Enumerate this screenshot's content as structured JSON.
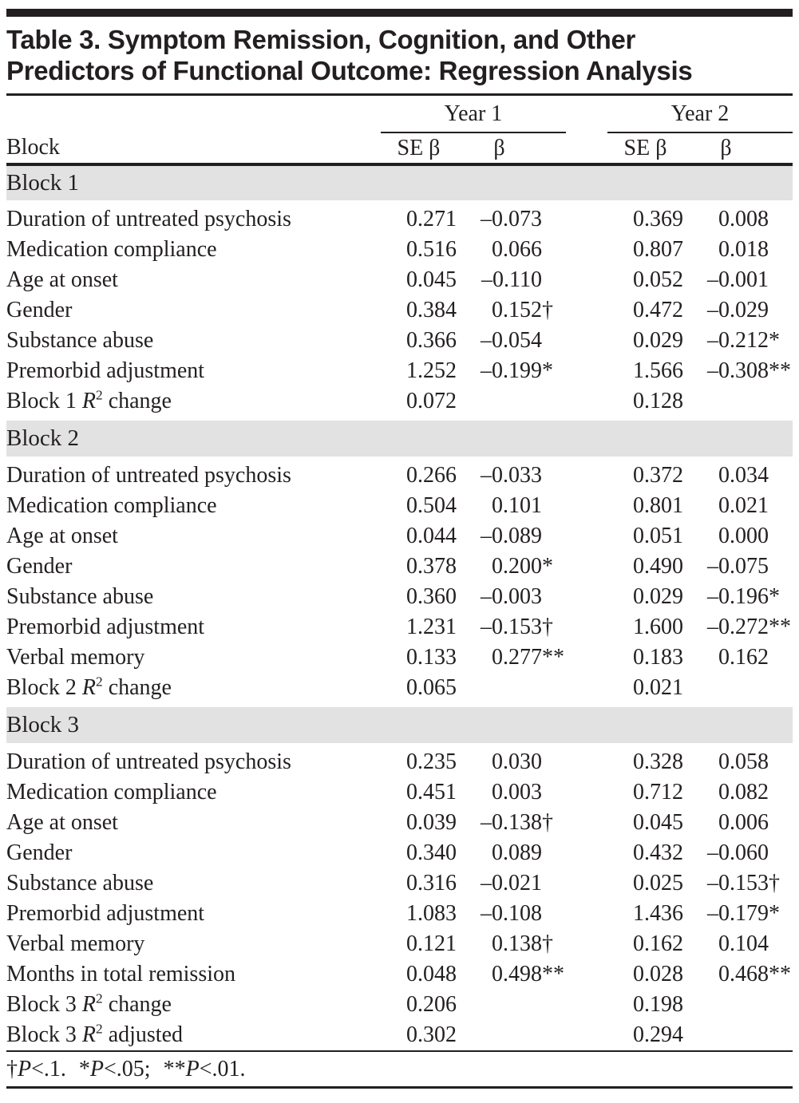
{
  "title": {
    "line1": "Table 3. Symptom Remission, Cognition, and Other",
    "line2": "Predictors of Functional Outcome: Regression Analysis"
  },
  "table": {
    "corner_label": "Block",
    "year_groups": [
      "Year 1",
      "Year 2"
    ],
    "subcolumns": {
      "se_beta": "SE β",
      "beta": "β"
    },
    "sections": [
      {
        "header": "Block 1",
        "rows": [
          {
            "label": "Duration of untreated psychosis",
            "cells": [
              [
                "0.271",
                ""
              ],
              [
                "–0.073",
                ""
              ],
              [
                "0.369",
                ""
              ],
              [
                "0.008",
                ""
              ]
            ]
          },
          {
            "label": "Medication compliance",
            "cells": [
              [
                "0.516",
                ""
              ],
              [
                "0.066",
                ""
              ],
              [
                "0.807",
                ""
              ],
              [
                "0.018",
                ""
              ]
            ]
          },
          {
            "label": "Age at onset",
            "cells": [
              [
                "0.045",
                ""
              ],
              [
                "–0.110",
                ""
              ],
              [
                "0.052",
                ""
              ],
              [
                "–0.001",
                ""
              ]
            ]
          },
          {
            "label": "Gender",
            "cells": [
              [
                "0.384",
                ""
              ],
              [
                "0.152",
                "†"
              ],
              [
                "0.472",
                ""
              ],
              [
                "–0.029",
                ""
              ]
            ]
          },
          {
            "label": "Substance abuse",
            "cells": [
              [
                "0.366",
                ""
              ],
              [
                "–0.054",
                ""
              ],
              [
                "0.029",
                ""
              ],
              [
                "–0.212",
                "*"
              ]
            ]
          },
          {
            "label": "Premorbid adjustment",
            "cells": [
              [
                "1.252",
                ""
              ],
              [
                "–0.199",
                "*"
              ],
              [
                "1.566",
                ""
              ],
              [
                "–0.308",
                "**"
              ]
            ]
          },
          {
            "label": "Block 1 R^2 change",
            "cells": [
              [
                "0.072",
                ""
              ],
              [
                "",
                ""
              ],
              [
                "0.128",
                ""
              ],
              [
                "",
                ""
              ]
            ]
          }
        ]
      },
      {
        "header": "Block 2",
        "rows": [
          {
            "label": "Duration of untreated psychosis",
            "cells": [
              [
                "0.266",
                ""
              ],
              [
                "–0.033",
                ""
              ],
              [
                "0.372",
                ""
              ],
              [
                "0.034",
                ""
              ]
            ]
          },
          {
            "label": "Medication compliance",
            "cells": [
              [
                "0.504",
                ""
              ],
              [
                "0.101",
                ""
              ],
              [
                "0.801",
                ""
              ],
              [
                "0.021",
                ""
              ]
            ]
          },
          {
            "label": "Age at onset",
            "cells": [
              [
                "0.044",
                ""
              ],
              [
                "–0.089",
                ""
              ],
              [
                "0.051",
                ""
              ],
              [
                "0.000",
                ""
              ]
            ]
          },
          {
            "label": "Gender",
            "cells": [
              [
                "0.378",
                ""
              ],
              [
                "0.200",
                "*"
              ],
              [
                "0.490",
                ""
              ],
              [
                "–0.075",
                ""
              ]
            ]
          },
          {
            "label": "Substance abuse",
            "cells": [
              [
                "0.360",
                ""
              ],
              [
                "–0.003",
                ""
              ],
              [
                "0.029",
                ""
              ],
              [
                "–0.196",
                "*"
              ]
            ]
          },
          {
            "label": "Premorbid adjustment",
            "cells": [
              [
                "1.231",
                ""
              ],
              [
                "–0.153",
                "†"
              ],
              [
                "1.600",
                ""
              ],
              [
                "–0.272",
                "**"
              ]
            ]
          },
          {
            "label": "Verbal memory",
            "cells": [
              [
                "0.133",
                ""
              ],
              [
                "0.277",
                "**"
              ],
              [
                "0.183",
                ""
              ],
              [
                "0.162",
                ""
              ]
            ]
          },
          {
            "label": "Block 2 R^2 change",
            "cells": [
              [
                "0.065",
                ""
              ],
              [
                "",
                ""
              ],
              [
                "0.021",
                ""
              ],
              [
                "",
                ""
              ]
            ]
          }
        ]
      },
      {
        "header": "Block 3",
        "rows": [
          {
            "label": "Duration of untreated psychosis",
            "cells": [
              [
                "0.235",
                ""
              ],
              [
                "0.030",
                ""
              ],
              [
                "0.328",
                ""
              ],
              [
                "0.058",
                ""
              ]
            ]
          },
          {
            "label": "Medication compliance",
            "cells": [
              [
                "0.451",
                ""
              ],
              [
                "0.003",
                ""
              ],
              [
                "0.712",
                ""
              ],
              [
                "0.082",
                ""
              ]
            ]
          },
          {
            "label": "Age at onset",
            "cells": [
              [
                "0.039",
                ""
              ],
              [
                "–0.138",
                "†"
              ],
              [
                "0.045",
                ""
              ],
              [
                "0.006",
                ""
              ]
            ]
          },
          {
            "label": "Gender",
            "cells": [
              [
                "0.340",
                ""
              ],
              [
                "0.089",
                ""
              ],
              [
                "0.432",
                ""
              ],
              [
                "–0.060",
                ""
              ]
            ]
          },
          {
            "label": "Substance abuse",
            "cells": [
              [
                "0.316",
                ""
              ],
              [
                "–0.021",
                ""
              ],
              [
                "0.025",
                ""
              ],
              [
                "–0.153",
                "†"
              ]
            ]
          },
          {
            "label": "Premorbid adjustment",
            "cells": [
              [
                "1.083",
                ""
              ],
              [
                "–0.108",
                ""
              ],
              [
                "1.436",
                ""
              ],
              [
                "–0.179",
                "*"
              ]
            ]
          },
          {
            "label": "Verbal memory",
            "cells": [
              [
                "0.121",
                ""
              ],
              [
                "0.138",
                "†"
              ],
              [
                "0.162",
                ""
              ],
              [
                "0.104",
                ""
              ]
            ]
          },
          {
            "label": "Months in total remission",
            "cells": [
              [
                "0.048",
                ""
              ],
              [
                "0.498",
                "**"
              ],
              [
                "0.028",
                ""
              ],
              [
                "0.468",
                "**"
              ]
            ]
          },
          {
            "label": "Block 3 R^2 change",
            "cells": [
              [
                "0.206",
                ""
              ],
              [
                "",
                ""
              ],
              [
                "0.198",
                ""
              ],
              [
                "",
                ""
              ]
            ]
          },
          {
            "label": "Block 3 R^2 adjusted",
            "cells": [
              [
                "0.302",
                ""
              ],
              [
                "",
                ""
              ],
              [
                "0.294",
                ""
              ],
              [
                "",
                ""
              ]
            ]
          }
        ]
      }
    ]
  },
  "footnote": {
    "segments": [
      {
        "marker": "†",
        "variable": "P",
        "condition": "<.1."
      },
      {
        "marker": "*",
        "variable": "P",
        "condition": "<.05;"
      },
      {
        "marker": "**",
        "variable": "P",
        "condition": "<.01."
      }
    ]
  },
  "colors": {
    "text": "#231f20",
    "band": "#e2e2e2",
    "rule": "#231f20",
    "background": "#ffffff"
  }
}
